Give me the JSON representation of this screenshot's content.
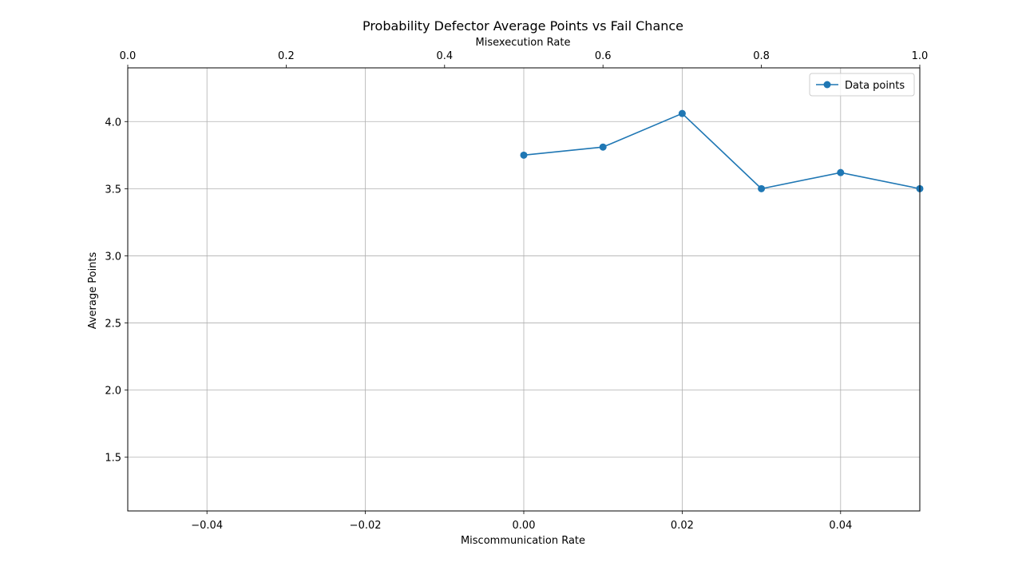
{
  "chart_data": {
    "type": "line",
    "title": "Probability Defector Average Points vs Fail Chance",
    "xlabel": "Miscommunication Rate",
    "ylabel": "Average Points",
    "x2label": "Misexecution Rate",
    "xlim": [
      -0.05,
      0.05
    ],
    "ylim": [
      1.1,
      4.4
    ],
    "x2lim": [
      0.0,
      1.0
    ],
    "xticks": [
      -0.04,
      -0.02,
      0.0,
      0.02,
      0.04
    ],
    "xtick_labels": [
      "−0.04",
      "−0.02",
      "0.00",
      "0.02",
      "0.04"
    ],
    "yticks": [
      1.5,
      2.0,
      2.5,
      3.0,
      3.5,
      4.0
    ],
    "ytick_labels": [
      "1.5",
      "2.0",
      "2.5",
      "3.0",
      "3.5",
      "4.0"
    ],
    "x2ticks": [
      0.0,
      0.2,
      0.4,
      0.6,
      0.8,
      1.0
    ],
    "x2tick_labels": [
      "0.0",
      "0.2",
      "0.4",
      "0.6",
      "0.8",
      "1.0"
    ],
    "grid": true,
    "legend_position": "top-right",
    "series": [
      {
        "name": "Data points",
        "color": "#1f77b4",
        "marker": "circle",
        "x": [
          0.0,
          0.01,
          0.02,
          0.03,
          0.04,
          0.05
        ],
        "y": [
          3.75,
          3.81,
          4.06,
          3.5,
          3.62,
          3.5
        ]
      }
    ]
  }
}
